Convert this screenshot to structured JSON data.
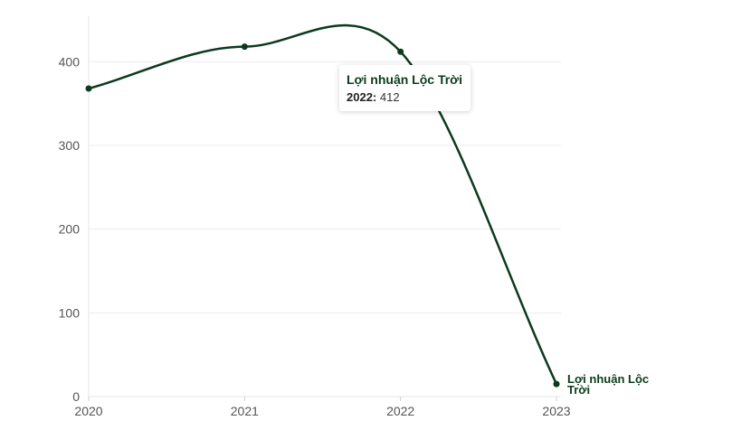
{
  "chart_data": {
    "type": "line",
    "title": "",
    "xlabel": "",
    "ylabel": "",
    "categories": [
      "2020",
      "2021",
      "2022",
      "2023"
    ],
    "series": [
      {
        "name": "Lợi nhuận Lộc Trời",
        "values": [
          368,
          418,
          412,
          15
        ],
        "color": "#0b3a1e"
      }
    ],
    "ylim": [
      0,
      450
    ],
    "yticks": [
      0,
      100,
      200,
      300,
      400
    ],
    "grid": true,
    "tooltip": {
      "title": "Lợi nhuận Lộc Trời",
      "key": "2022:",
      "value": "412"
    }
  }
}
